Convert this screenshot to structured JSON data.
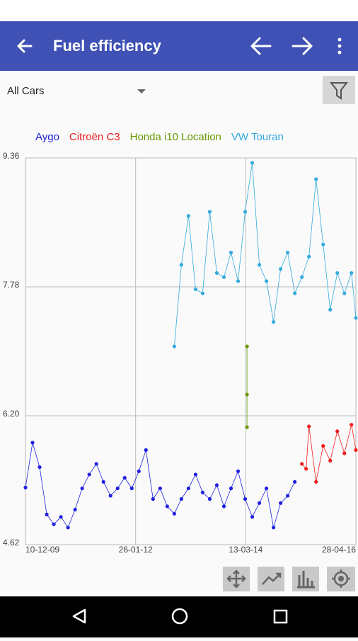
{
  "app_bar": {
    "title": "Fuel efficiency"
  },
  "filter": {
    "selected": "All Cars"
  },
  "chart_data": {
    "type": "line",
    "xlim": [
      "10-12-09",
      "28-04-16"
    ],
    "xticks": [
      "10-12-09",
      "26-01-12",
      "13-03-14",
      "28-04-16"
    ],
    "ylim": [
      4.62,
      9.36
    ],
    "yticks": [
      4.62,
      {
        "value": 6.2,
        "label": "6.20"
      },
      7.78,
      9.36
    ],
    "grid": true,
    "series": [
      {
        "name": "Aygo",
        "color": "#2020e0",
        "x": [
          "10-12-09",
          "29-01-10",
          "20-03-10",
          "09-05-10",
          "28-06-10",
          "17-08-10",
          "06-10-10",
          "25-11-10",
          "14-01-11",
          "05-03-11",
          "24-04-11",
          "13-06-11",
          "02-08-11",
          "21-09-11",
          "10-11-11",
          "30-12-11",
          "18-02-12",
          "08-04-12",
          "28-05-12",
          "17-07-12",
          "05-09-12",
          "25-10-12",
          "14-12-12",
          "02-02-13",
          "24-03-13",
          "13-05-13",
          "02-07-13",
          "21-08-13",
          "10-10-13",
          "29-11-13",
          "18-01-14",
          "09-03-14",
          "28-04-14",
          "17-06-14",
          "06-08-14",
          "25-09-14",
          "14-11-14",
          "03-01-15",
          "22-02-15"
        ],
        "values": [
          5.32,
          5.87,
          5.57,
          4.99,
          4.87,
          4.96,
          4.83,
          5.05,
          5.31,
          5.48,
          5.61,
          5.39,
          5.22,
          5.31,
          5.44,
          5.31,
          5.52,
          5.78,
          5.18,
          5.31,
          5.09,
          5.0,
          5.18,
          5.31,
          5.48,
          5.26,
          5.18,
          5.35,
          5.09,
          5.31,
          5.52,
          5.18,
          4.96,
          5.13,
          5.31,
          4.83,
          5.13,
          5.22,
          5.39
        ]
      },
      {
        "name": "Citroën C3",
        "color": "#ee1c1c",
        "x": [
          "13-04-15",
          "13-05-15",
          "02-06-15",
          "22-07-15",
          "10-09-15",
          "30-10-15",
          "19-12-15",
          "07-02-16",
          "28-03-16",
          "28-04-16"
        ],
        "values": [
          5.61,
          5.55,
          6.07,
          5.39,
          5.83,
          5.65,
          6.01,
          5.74,
          6.09,
          5.78
        ]
      },
      {
        "name": "Honda i10 Location",
        "color": "#669900",
        "x": [
          "22-03-14",
          "22-03-14",
          "22-03-14"
        ],
        "values": [
          7.05,
          6.46,
          6.06
        ]
      },
      {
        "name": "VW Touran",
        "color": "#33aadd",
        "x": [
          "25-10-12",
          "14-12-12",
          "02-02-13",
          "24-03-13",
          "13-05-13",
          "02-07-13",
          "21-08-13",
          "10-10-13",
          "29-11-13",
          "18-01-14",
          "09-03-14",
          "28-04-14",
          "17-06-14",
          "06-08-14",
          "25-09-14",
          "14-11-14",
          "03-01-15",
          "22-02-15",
          "13-04-15",
          "02-06-15",
          "22-07-15",
          "10-09-15",
          "30-10-15",
          "19-12-15",
          "07-02-16",
          "28-03-16",
          "28-04-16"
        ],
        "values": [
          7.05,
          8.05,
          8.65,
          7.75,
          7.7,
          8.7,
          7.95,
          7.9,
          8.2,
          7.85,
          8.7,
          9.3,
          8.05,
          7.85,
          7.35,
          8.0,
          8.2,
          7.7,
          7.9,
          8.15,
          9.1,
          8.3,
          7.5,
          7.95,
          7.7,
          7.95,
          7.4
        ]
      }
    ]
  }
}
